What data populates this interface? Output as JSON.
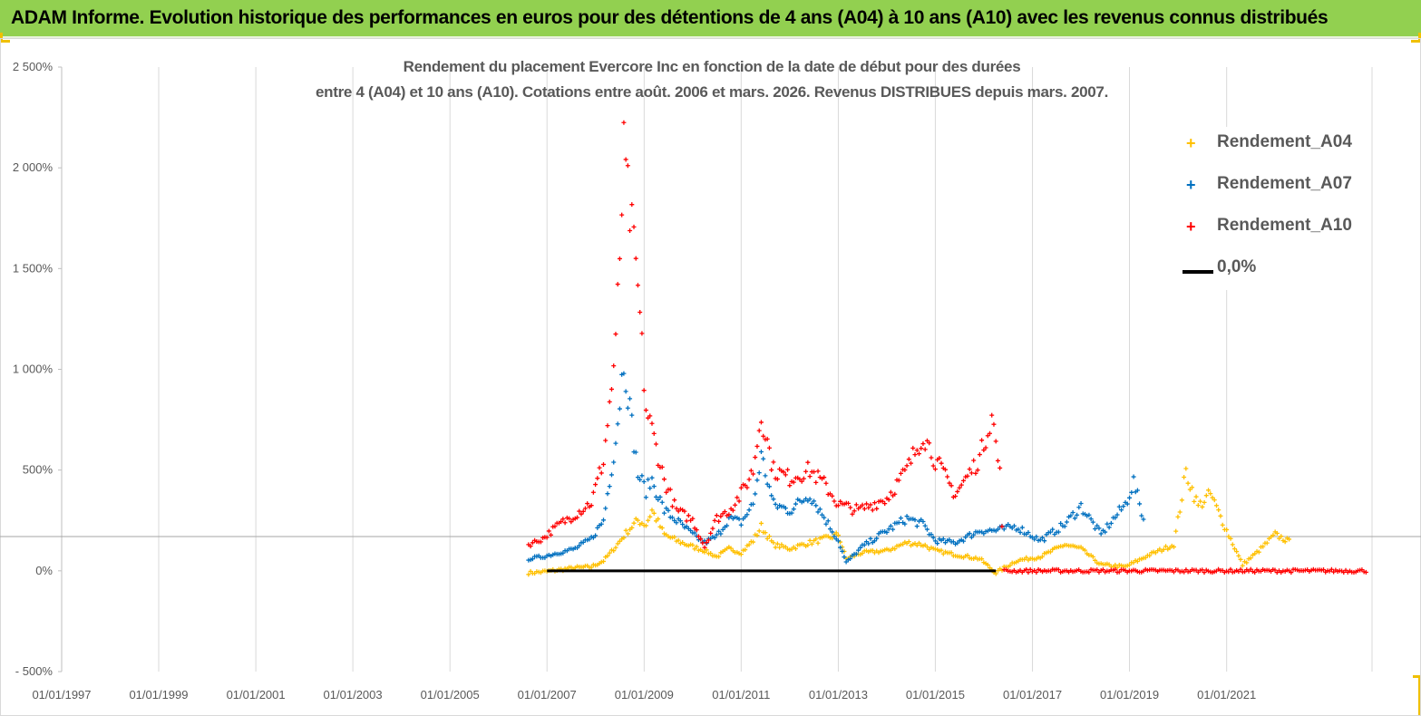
{
  "header": {
    "title": "ADAM Informe. Evolution historique des performances en euros pour des détentions de 4 ans (A04) à 10 ans (A10) avec les revenus connus distribués"
  },
  "colors": {
    "header_bg": "#92d050",
    "A04": "#ffc000",
    "A07": "#0070c0",
    "A10": "#ff0000",
    "zero_line": "#000000"
  },
  "chart_data": {
    "type": "scatter",
    "title_lines": [
      "Rendement du placement Evercore Inc en fonction de la date de début pour des durées",
      "entre 4 (A04) et 10 ans (A10). Cotations entre août. 2006 et mars. 2026. Revenus DISTRIBUES depuis mars. 2007."
    ],
    "x_axis": {
      "type": "date",
      "min": "1997-01-01",
      "max": "2023-12-31",
      "tick_labels": [
        "01/01/1997",
        "01/01/1999",
        "01/01/2001",
        "01/01/2003",
        "01/01/2005",
        "01/01/2007",
        "01/01/2009",
        "01/01/2011",
        "01/01/2013",
        "01/01/2015",
        "01/01/2017",
        "01/01/2019",
        "01/01/2021"
      ],
      "tick_values": [
        "1997-01-01",
        "1999-01-01",
        "2001-01-01",
        "2003-01-01",
        "2005-01-01",
        "2007-01-01",
        "2009-01-01",
        "2011-01-01",
        "2013-01-01",
        "2015-01-01",
        "2017-01-01",
        "2019-01-01",
        "2021-01-01"
      ]
    },
    "y_axis": {
      "min": -500,
      "max": 2500,
      "unit": "%",
      "ticks": [
        -500,
        0,
        500,
        1000,
        1500,
        2000,
        2500
      ],
      "tick_labels": [
        "- 500%",
        "0%",
        "500%",
        "1 000%",
        "1 500%",
        "2 000%",
        "2 500%"
      ]
    },
    "reference_line_y": 170,
    "grid": "vertical",
    "legend_position": "right",
    "legend": [
      "Rendement_A04",
      "Rendement_A07",
      "Rendement_A10",
      "0,0%"
    ],
    "series": [
      {
        "name": "Rendement_A04",
        "marker": "+",
        "points": [
          [
            "2006-08-15",
            -10
          ],
          [
            "2006-12-01",
            -5
          ],
          [
            "2007-04-01",
            5
          ],
          [
            "2007-08-01",
            15
          ],
          [
            "2007-12-01",
            20
          ],
          [
            "2008-03-01",
            50
          ],
          [
            "2008-06-01",
            120
          ],
          [
            "2008-09-01",
            200
          ],
          [
            "2008-11-15",
            250
          ],
          [
            "2009-01-15",
            230
          ],
          [
            "2009-03-01",
            300
          ],
          [
            "2009-06-01",
            180
          ],
          [
            "2009-09-01",
            150
          ],
          [
            "2010-01-01",
            120
          ],
          [
            "2010-04-01",
            100
          ],
          [
            "2010-07-01",
            70
          ],
          [
            "2010-10-01",
            110
          ],
          [
            "2011-01-01",
            90
          ],
          [
            "2011-04-01",
            150
          ],
          [
            "2011-06-01",
            220
          ],
          [
            "2011-09-01",
            130
          ],
          [
            "2012-01-01",
            110
          ],
          [
            "2012-06-01",
            140
          ],
          [
            "2012-10-01",
            160
          ],
          [
            "2013-01-01",
            180
          ],
          [
            "2013-03-01",
            60
          ],
          [
            "2013-07-01",
            90
          ],
          [
            "2014-01-01",
            100
          ],
          [
            "2014-06-01",
            140
          ],
          [
            "2014-10-01",
            130
          ],
          [
            "2015-01-01",
            100
          ],
          [
            "2015-06-01",
            80
          ],
          [
            "2015-12-01",
            60
          ],
          [
            "2016-04-01",
            -10
          ],
          [
            "2016-09-01",
            50
          ],
          [
            "2017-03-01",
            70
          ],
          [
            "2017-09-01",
            130
          ],
          [
            "2018-01-01",
            110
          ],
          [
            "2018-06-01",
            30
          ],
          [
            "2018-12-01",
            20
          ],
          [
            "2019-06-01",
            80
          ],
          [
            "2019-12-01",
            130
          ],
          [
            "2020-03-01",
            490
          ],
          [
            "2020-06-01",
            320
          ],
          [
            "2020-09-01",
            380
          ],
          [
            "2021-01-01",
            200
          ],
          [
            "2021-05-01",
            30
          ],
          [
            "2021-09-01",
            100
          ],
          [
            "2022-01-01",
            180
          ],
          [
            "2022-05-01",
            140
          ]
        ]
      },
      {
        "name": "Rendement_A07",
        "marker": "+",
        "points": [
          [
            "2006-08-15",
            60
          ],
          [
            "2006-12-01",
            70
          ],
          [
            "2007-04-01",
            90
          ],
          [
            "2007-08-01",
            110
          ],
          [
            "2007-12-01",
            160
          ],
          [
            "2008-03-01",
            250
          ],
          [
            "2008-06-01",
            650
          ],
          [
            "2008-08-01",
            1050
          ],
          [
            "2008-11-15",
            480
          ],
          [
            "2009-01-15",
            400
          ],
          [
            "2009-03-01",
            450
          ],
          [
            "2009-06-01",
            300
          ],
          [
            "2009-09-01",
            250
          ],
          [
            "2010-01-01",
            180
          ],
          [
            "2010-04-01",
            140
          ],
          [
            "2010-07-01",
            170
          ],
          [
            "2010-10-01",
            260
          ],
          [
            "2011-01-01",
            240
          ],
          [
            "2011-04-01",
            330
          ],
          [
            "2011-06-01",
            570
          ],
          [
            "2011-09-01",
            330
          ],
          [
            "2012-01-01",
            300
          ],
          [
            "2012-06-01",
            380
          ],
          [
            "2012-10-01",
            250
          ],
          [
            "2013-01-01",
            150
          ],
          [
            "2013-03-01",
            40
          ],
          [
            "2013-07-01",
            120
          ],
          [
            "2014-01-01",
            200
          ],
          [
            "2014-06-01",
            260
          ],
          [
            "2014-10-01",
            230
          ],
          [
            "2015-01-01",
            150
          ],
          [
            "2015-06-01",
            140
          ],
          [
            "2015-12-01",
            200
          ],
          [
            "2016-04-01",
            200
          ],
          [
            "2016-09-01",
            220
          ],
          [
            "2017-03-01",
            150
          ],
          [
            "2017-09-01",
            230
          ],
          [
            "2018-01-01",
            320
          ],
          [
            "2018-06-01",
            180
          ],
          [
            "2018-12-01",
            330
          ],
          [
            "2019-02-01",
            440
          ],
          [
            "2019-05-01",
            220
          ]
        ]
      },
      {
        "name": "Rendement_A10",
        "marker": "+",
        "points": [
          [
            "2006-08-15",
            130
          ],
          [
            "2006-12-01",
            160
          ],
          [
            "2007-04-01",
            230
          ],
          [
            "2007-08-01",
            280
          ],
          [
            "2007-12-01",
            340
          ],
          [
            "2008-03-01",
            550
          ],
          [
            "2008-06-01",
            1100
          ],
          [
            "2008-08-01",
            2050
          ],
          [
            "2008-11-15",
            1400
          ],
          [
            "2009-01-15",
            800
          ],
          [
            "2009-03-01",
            700
          ],
          [
            "2009-06-01",
            450
          ],
          [
            "2009-09-01",
            300
          ],
          [
            "2010-01-01",
            250
          ],
          [
            "2010-04-01",
            120
          ],
          [
            "2010-07-01",
            260
          ],
          [
            "2010-10-01",
            300
          ],
          [
            "2011-01-01",
            380
          ],
          [
            "2011-04-01",
            500
          ],
          [
            "2011-06-01",
            780
          ],
          [
            "2011-09-01",
            500
          ],
          [
            "2012-01-01",
            460
          ],
          [
            "2012-06-01",
            500
          ],
          [
            "2012-10-01",
            420
          ],
          [
            "2013-01-01",
            330
          ],
          [
            "2013-06-01",
            300
          ],
          [
            "2014-01-01",
            360
          ],
          [
            "2014-06-01",
            500
          ],
          [
            "2014-10-01",
            680
          ],
          [
            "2015-01-01",
            550
          ],
          [
            "2015-06-01",
            380
          ],
          [
            "2015-12-01",
            560
          ],
          [
            "2016-03-01",
            780
          ],
          [
            "2016-05-01",
            480
          ],
          [
            "2016-06-01",
            0
          ],
          [
            "2017-06-01",
            0
          ],
          [
            "2018-06-01",
            0
          ],
          [
            "2019-06-01",
            0
          ],
          [
            "2020-06-01",
            0
          ],
          [
            "2021-06-01",
            0
          ],
          [
            "2022-06-01",
            0
          ],
          [
            "2023-06-01",
            0
          ],
          [
            "2023-12-01",
            0
          ]
        ]
      }
    ],
    "zero_line": {
      "name": "0,0%",
      "x_start": "2007-01-01",
      "x_end": "2016-04-01",
      "y": 0
    }
  }
}
